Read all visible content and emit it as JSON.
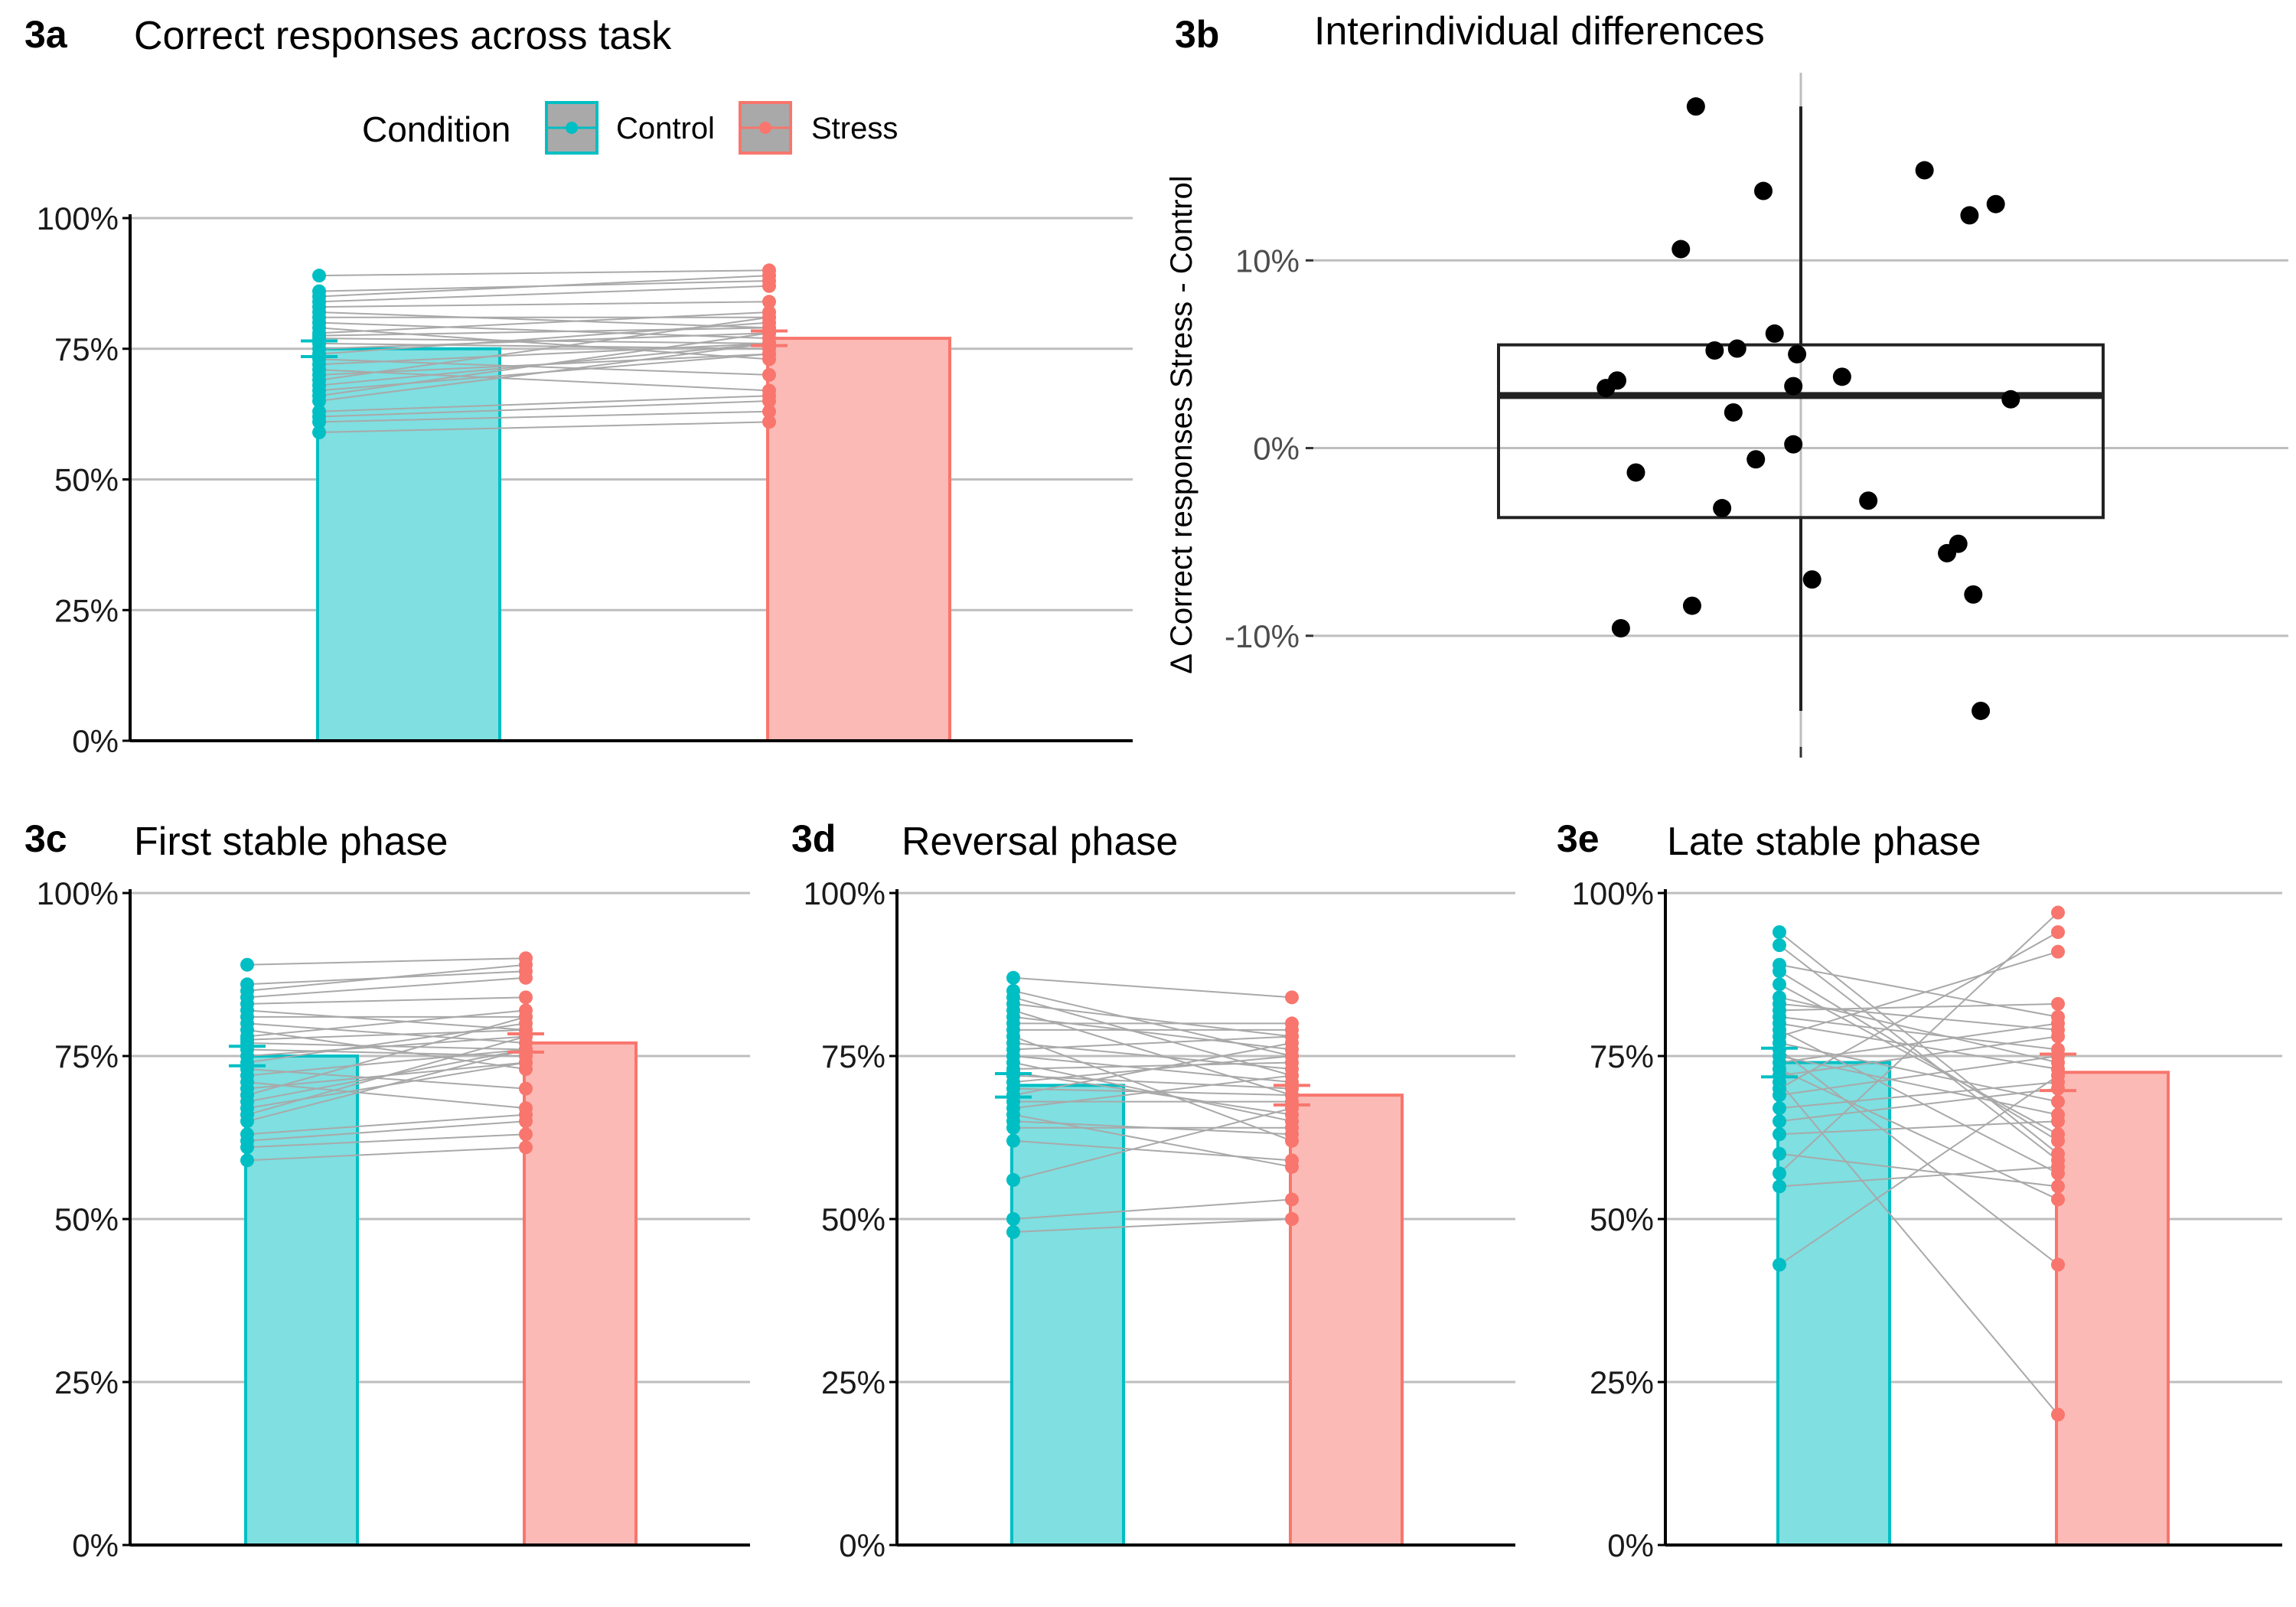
{
  "colors": {
    "control": "#00BFC4",
    "control_fill": "#7FDFE1",
    "stress": "#F8766D",
    "stress_fill": "#FBBAB6",
    "grid": "#BEBEBE",
    "pair_line": "#A9A9A9",
    "axis": "#000000"
  },
  "legend": {
    "title": "Condition",
    "items": [
      "Control",
      "Stress"
    ]
  },
  "chart_data": [
    {
      "id": "3a",
      "type": "bar",
      "tag": "3a",
      "title": "Correct responses across task",
      "categories": [
        "Control",
        "Stress"
      ],
      "means": [
        75,
        77
      ],
      "sem": [
        1.5,
        1.4
      ],
      "ylim": [
        0,
        100
      ],
      "yticks": [
        "0%",
        "25%",
        "50%",
        "75%",
        "100%"
      ],
      "grid": true,
      "subjects": {
        "Control": [
          59,
          61,
          62,
          63,
          65,
          66,
          67,
          68,
          69,
          70,
          71,
          72,
          73,
          74,
          75,
          76,
          77,
          77.5,
          78,
          79,
          80,
          81,
          82,
          83,
          84,
          85,
          86,
          89
        ],
        "Stress": [
          61,
          63,
          65,
          66,
          76,
          78,
          74,
          76,
          81,
          74,
          67,
          76,
          70,
          80,
          78,
          75,
          76,
          79,
          82,
          73,
          77,
          81,
          79,
          84,
          87,
          89,
          88,
          90
        ]
      }
    },
    {
      "id": "3b",
      "type": "box",
      "tag": "3b",
      "title": "Interindividual differences",
      "ylabel": "Δ Correct responses Stress - Control",
      "ylim": [
        -16,
        20
      ],
      "yticks": [
        "-10%",
        "0%",
        "10%"
      ],
      "box": {
        "whisker_low": -14,
        "q1": -3.7,
        "median": 2.8,
        "q3": 5.5,
        "whisker_high": 18.2
      },
      "points": [
        {
          "jx": -0.28,
          "y": 18.2
        },
        {
          "jx": -0.32,
          "y": 10.6
        },
        {
          "jx": -0.1,
          "y": 13.7
        },
        {
          "jx": 0.33,
          "y": 14.8
        },
        {
          "jx": 0.45,
          "y": 12.4
        },
        {
          "jx": 0.52,
          "y": 13.0
        },
        {
          "jx": -0.07,
          "y": 6.1
        },
        {
          "jx": -0.23,
          "y": 5.2
        },
        {
          "jx": -0.17,
          "y": 5.3
        },
        {
          "jx": -0.01,
          "y": 5.0
        },
        {
          "jx": 0.11,
          "y": 3.8
        },
        {
          "jx": -0.49,
          "y": 3.6
        },
        {
          "jx": -0.52,
          "y": 3.2
        },
        {
          "jx": -0.02,
          "y": 3.3
        },
        {
          "jx": 0.56,
          "y": 2.6
        },
        {
          "jx": -0.18,
          "y": 1.9
        },
        {
          "jx": -0.02,
          "y": 0.2
        },
        {
          "jx": -0.12,
          "y": -0.6
        },
        {
          "jx": -0.44,
          "y": -1.3
        },
        {
          "jx": 0.18,
          "y": -2.8
        },
        {
          "jx": -0.21,
          "y": -3.2
        },
        {
          "jx": 0.42,
          "y": -5.1
        },
        {
          "jx": 0.39,
          "y": -5.6
        },
        {
          "jx": 0.03,
          "y": -7.0
        },
        {
          "jx": 0.46,
          "y": -7.8
        },
        {
          "jx": -0.29,
          "y": -8.4
        },
        {
          "jx": -0.48,
          "y": -9.6
        },
        {
          "jx": 0.48,
          "y": -14.0
        }
      ]
    },
    {
      "id": "3c",
      "type": "bar",
      "tag": "3c",
      "title": "First stable phase",
      "categories": [
        "Control",
        "Stress"
      ],
      "means": [
        75,
        77
      ],
      "sem": [
        1.5,
        1.4
      ],
      "ylim": [
        0,
        100
      ],
      "yticks": [
        "0%",
        "25%",
        "50%",
        "75%",
        "100%"
      ],
      "grid": true,
      "subjects": {
        "Control": [
          59,
          61,
          62,
          63,
          65,
          66,
          67,
          68,
          69,
          70,
          71,
          72,
          73,
          74,
          75,
          76,
          77,
          77.5,
          78,
          79,
          80,
          81,
          82,
          83,
          84,
          85,
          86,
          89
        ],
        "Stress": [
          61,
          63,
          65,
          66,
          76,
          78,
          74,
          76,
          81,
          74,
          67,
          76,
          70,
          80,
          78,
          75,
          76,
          79,
          82,
          73,
          77,
          81,
          79,
          84,
          87,
          89,
          88,
          90
        ]
      }
    },
    {
      "id": "3d",
      "type": "bar",
      "tag": "3d",
      "title": "Reversal phase",
      "categories": [
        "Control",
        "Stress"
      ],
      "means": [
        70.5,
        69
      ],
      "sem": [
        1.8,
        1.5
      ],
      "ylim": [
        0,
        100
      ],
      "yticks": [
        "0%",
        "25%",
        "50%",
        "75%",
        "100%"
      ],
      "grid": true,
      "subjects": {
        "Control": [
          48,
          50,
          56,
          62,
          64,
          65,
          66,
          67,
          68,
          69,
          70,
          71,
          72,
          72.5,
          73,
          74,
          75,
          76,
          77,
          78,
          79,
          80,
          81,
          82,
          83,
          84,
          85,
          87
        ],
        "Stress": [
          50,
          53,
          67,
          59,
          64,
          63,
          58,
          72,
          68,
          77,
          69,
          75,
          70,
          66,
          74,
          65,
          71,
          78,
          73,
          62,
          79,
          80,
          76,
          69,
          78,
          72,
          75,
          84
        ]
      }
    },
    {
      "id": "3e",
      "type": "bar",
      "tag": "3e",
      "title": "Late stable phase",
      "categories": [
        "Control",
        "Stress"
      ],
      "means": [
        74,
        72.5
      ],
      "sem": [
        2.2,
        2.8
      ],
      "ylim": [
        0,
        100
      ],
      "yticks": [
        "0%",
        "25%",
        "50%",
        "75%",
        "100%"
      ],
      "grid": true,
      "subjects": {
        "Control": [
          43,
          55,
          57,
          60,
          63,
          65,
          67,
          69,
          70,
          71,
          72,
          73,
          74,
          75,
          76,
          77,
          78,
          79,
          80,
          81,
          82,
          83,
          84,
          86,
          88,
          89,
          92,
          94
        ],
        "Stress": [
          72,
          58,
          97,
          55,
          65,
          70,
          71,
          75,
          94,
          20,
          78,
          53,
          80,
          66,
          43,
          68,
          91,
          57,
          73,
          76,
          83,
          79,
          74,
          63,
          62,
          81,
          59,
          60
        ]
      }
    }
  ]
}
